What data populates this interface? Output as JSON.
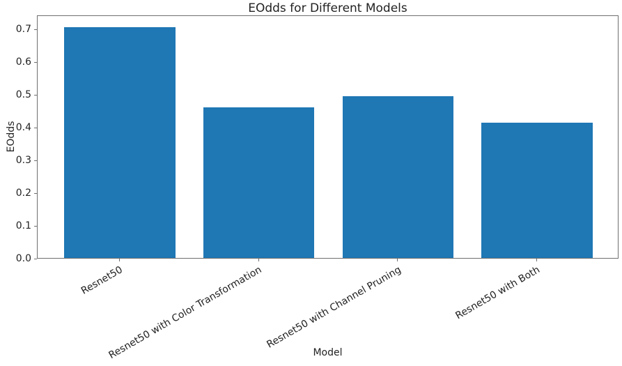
{
  "chart_data": {
    "type": "bar",
    "title": "EOdds for Different Models",
    "xlabel": "Model",
    "ylabel": "EOdds",
    "categories": [
      "Resnet50",
      "Resnet50 with Color Transformation",
      "Resnet50 with Channel Pruning",
      "Resnet50 with Both"
    ],
    "values": [
      0.704,
      0.46,
      0.494,
      0.413
    ],
    "ylim": [
      0,
      0.743
    ],
    "yticks": [
      0.0,
      0.1,
      0.2,
      0.3,
      0.4,
      0.5,
      0.6,
      0.7
    ],
    "ytick_labels": [
      "0.0",
      "0.1",
      "0.2",
      "0.3",
      "0.4",
      "0.5",
      "0.6",
      "0.7"
    ],
    "bar_color": "#1f77b4",
    "bar_width_fraction": 0.8,
    "xtick_rotation_deg": 30,
    "grid": false,
    "legend": "none",
    "spine_color": "#6e6e6e"
  }
}
